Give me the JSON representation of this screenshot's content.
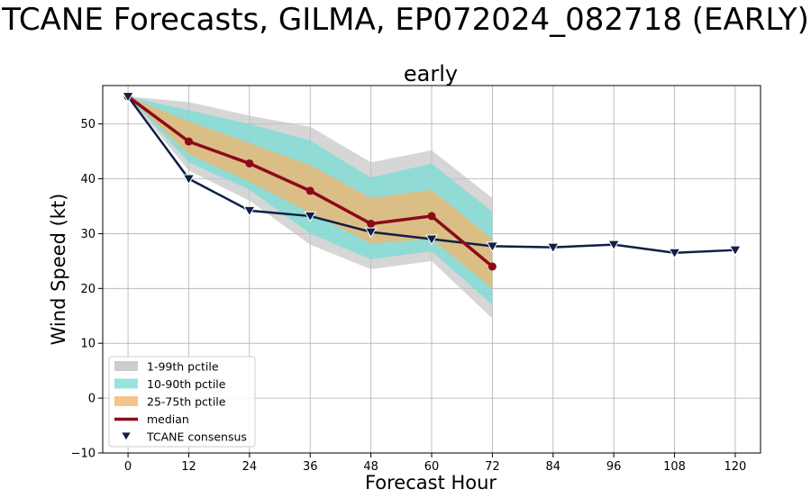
{
  "figure_title": "TCANE Forecasts, GILMA, EP072024_082718 (EARLY)",
  "chart_data": {
    "type": "line",
    "title": "early",
    "xlabel": "Forecast Hour",
    "ylabel": "Wind Speed (kt)",
    "xlim": [
      -5,
      125
    ],
    "ylim": [
      -10,
      57
    ],
    "xticks": [
      0,
      12,
      24,
      36,
      48,
      60,
      72,
      84,
      96,
      108,
      120
    ],
    "yticks": [
      -10,
      0,
      10,
      20,
      30,
      40,
      50
    ],
    "grid": true,
    "legend_position": "lower-left",
    "bands": [
      {
        "name": "1-99th pctile",
        "color": "#c0c0c0",
        "opacity": 0.65,
        "x": [
          0,
          12,
          24,
          36,
          48,
          60,
          72
        ],
        "lower": [
          55,
          41.5,
          36,
          28,
          23.5,
          25,
          14.5
        ],
        "upper": [
          55,
          54,
          51.5,
          49.5,
          43,
          45.2,
          36.5
        ]
      },
      {
        "name": "10-90th pctile",
        "color": "#7fdcd6",
        "opacity": 0.8,
        "x": [
          0,
          12,
          24,
          36,
          48,
          60,
          72
        ],
        "lower": [
          55,
          43,
          38,
          30,
          25.3,
          26.8,
          17
        ],
        "upper": [
          55,
          52.5,
          50,
          47,
          40.2,
          42.8,
          34
        ]
      },
      {
        "name": "25-75th pctile",
        "color": "#f4b46a",
        "opacity": 0.75,
        "x": [
          0,
          12,
          24,
          36,
          48,
          60,
          72
        ],
        "lower": [
          55,
          44.5,
          39.5,
          33.8,
          28.2,
          29,
          20
        ],
        "upper": [
          55,
          50.5,
          46.5,
          42.5,
          36.5,
          38,
          29
        ]
      }
    ],
    "series": [
      {
        "name": "median",
        "color": "#8b0a1a",
        "marker": "circle",
        "x": [
          0,
          12,
          24,
          36,
          48,
          60,
          72
        ],
        "values": [
          55,
          46.8,
          42.8,
          37.8,
          31.8,
          33.2,
          24
        ]
      },
      {
        "name": "TCANE consensus",
        "color": "#0f1f45",
        "marker": "triangle-down",
        "x": [
          0,
          12,
          24,
          36,
          48,
          60,
          72,
          84,
          96,
          108,
          120
        ],
        "values": [
          55,
          40,
          34.2,
          33.2,
          30.3,
          29,
          27.7,
          27.5,
          28,
          26.5,
          27
        ]
      }
    ],
    "legend": [
      {
        "label": "1-99th pctile",
        "kind": "patch",
        "color": "#c0c0c0"
      },
      {
        "label": "10-90th pctile",
        "kind": "patch",
        "color": "#7fdcd6"
      },
      {
        "label": "25-75th pctile",
        "kind": "patch",
        "color": "#f4b46a"
      },
      {
        "label": "median",
        "kind": "line",
        "color": "#8b0a1a"
      },
      {
        "label": "TCANE consensus",
        "kind": "marker",
        "color": "#0f1f45"
      }
    ]
  }
}
